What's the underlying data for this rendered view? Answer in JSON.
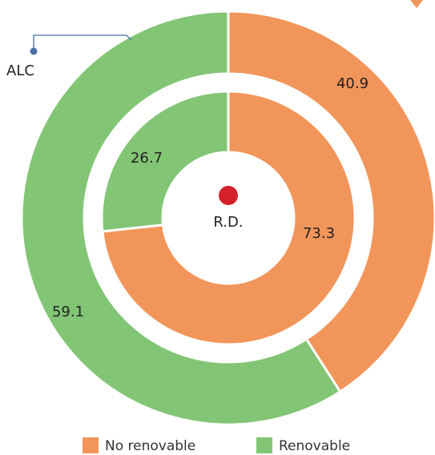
{
  "chart_data": {
    "type": "nested-donut",
    "categories": [
      "No renovable",
      "Renovable"
    ],
    "colors": [
      "#f2955a",
      "#82c575"
    ],
    "rings": [
      {
        "label": "ALC",
        "values": [
          40.9,
          59.1
        ]
      },
      {
        "label": "R.D.",
        "values": [
          73.3,
          26.7
        ]
      }
    ],
    "legend": "bottom"
  }
}
